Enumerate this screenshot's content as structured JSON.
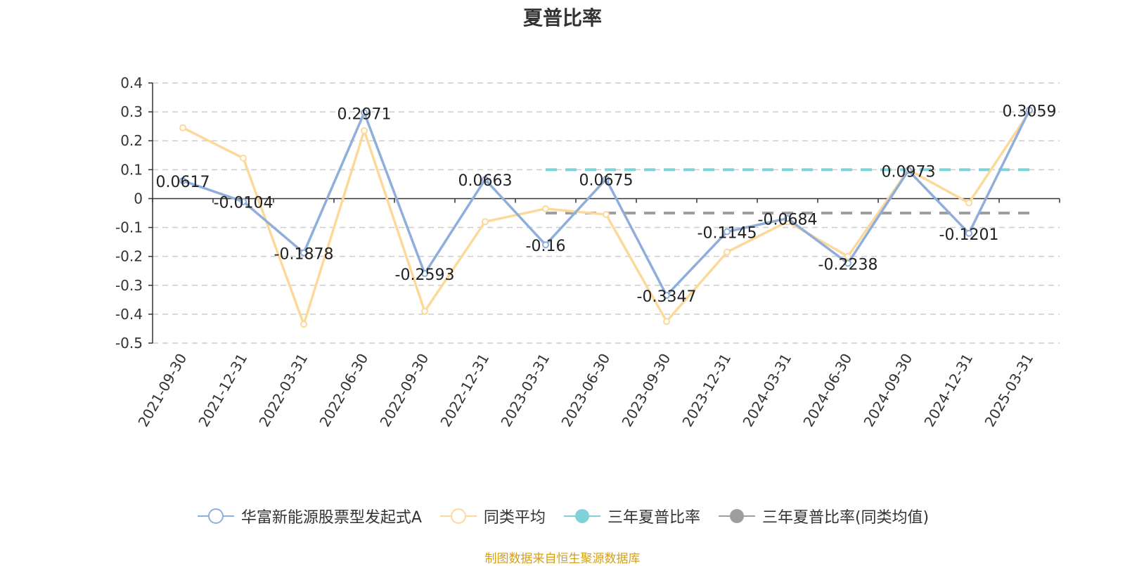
{
  "chart_data": {
    "type": "line",
    "title": "夏普比率",
    "categories": [
      "2021-09-30",
      "2021-12-31",
      "2022-03-31",
      "2022-06-30",
      "2022-09-30",
      "2022-12-31",
      "2023-03-31",
      "2023-06-30",
      "2023-09-30",
      "2023-12-31",
      "2024-03-31",
      "2024-06-30",
      "2024-09-30",
      "2024-12-31",
      "2025-03-31"
    ],
    "ylim": [
      -0.5,
      0.4
    ],
    "yticks": [
      "0.4",
      "0.3",
      "0.2",
      "0.1",
      "0",
      "-0.1",
      "-0.2",
      "-0.3",
      "-0.4",
      "-0.5"
    ],
    "grid": true,
    "legend_position": "bottom",
    "series": [
      {
        "name": "华富新能源股票型发起式A",
        "color": "#8eaedc",
        "type": "line",
        "values": [
          0.0617,
          -0.0104,
          -0.1878,
          0.2971,
          -0.2593,
          0.0663,
          -0.16,
          0.0675,
          -0.3347,
          -0.1145,
          -0.0684,
          -0.2238,
          0.0973,
          -0.1201,
          0.3059
        ],
        "labels": [
          "0.0617",
          "-0.0104",
          "-0.1878",
          "0.2971",
          "-0.2593",
          "0.0663",
          "-0.16",
          "0.0675",
          "-0.3347",
          "-0.1145",
          "-0.0684",
          "-0.2238",
          "0.0973",
          "-0.1201",
          "0.3059"
        ]
      },
      {
        "name": "同类平均",
        "color": "#fcd99a",
        "type": "line",
        "values": [
          0.245,
          0.14,
          -0.435,
          0.235,
          -0.39,
          -0.08,
          -0.035,
          -0.055,
          -0.425,
          -0.185,
          -0.08,
          -0.2,
          0.1,
          -0.015,
          0.3
        ]
      },
      {
        "name": "三年夏普比率",
        "color": "#7fd3d8",
        "type": "dashed",
        "from": "2023-03-31",
        "to": "2025-03-31",
        "value": 0.1
      },
      {
        "name": "三年夏普比率(同类均值)",
        "color": "#9e9e9e",
        "type": "dashed",
        "from": "2023-03-31",
        "to": "2025-03-31",
        "value": -0.05
      }
    ]
  },
  "source": "制图数据来自恒生聚源数据库"
}
